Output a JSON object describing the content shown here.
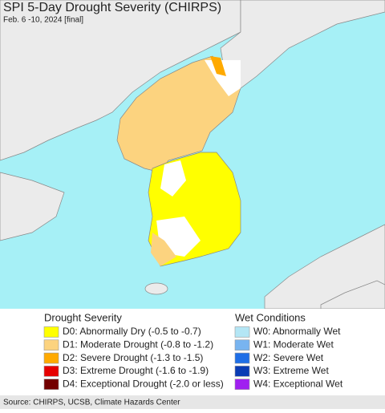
{
  "header": {
    "title": "SPI 5-Day Drought Severity (CHIRPS)",
    "subtitle": "Feb. 6 -10, 2024 [final]"
  },
  "legend": {
    "drought": {
      "title": "Drought Severity",
      "items": [
        {
          "label": "D0: Abnormally Dry (-0.5 to -0.7)",
          "color": "#ffff00"
        },
        {
          "label": "D1: Moderate Drought (-0.8 to -1.2)",
          "color": "#fcd37f"
        },
        {
          "label": "D2: Severe Drought (-1.3 to -1.5)",
          "color": "#ffaa00"
        },
        {
          "label": "D3: Extreme Drought (-1.6 to -1.9)",
          "color": "#e60000"
        },
        {
          "label": "D4: Exceptional Drought (-2.0 or less)",
          "color": "#730000"
        }
      ]
    },
    "wet": {
      "title": "Wet Conditions",
      "items": [
        {
          "label": "W0: Abnormally Wet",
          "color": "#b4e6f5"
        },
        {
          "label": "W1: Moderate Wet",
          "color": "#78b4f0"
        },
        {
          "label": "W2: Severe Wet",
          "color": "#1e6ee6"
        },
        {
          "label": "W3: Extreme Wet",
          "color": "#0a3cb4"
        },
        {
          "label": "W4: Exceptional Wet",
          "color": "#a020f0"
        }
      ]
    }
  },
  "source": "Source: CHIRPS, UCSB, Climate Hazards Center"
}
